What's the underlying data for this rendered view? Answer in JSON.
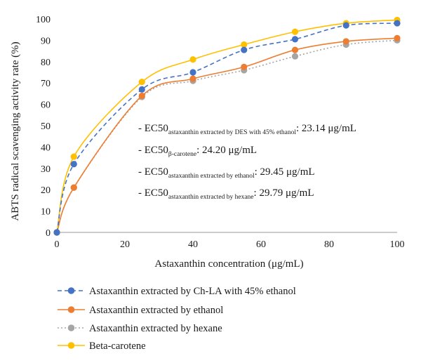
{
  "chart_data": {
    "type": "line",
    "xlabel": "Astaxanthin concentration (μg/mL)",
    "ylabel": "ABTS radical scavenging activity rate (%)",
    "xlim": [
      0,
      100
    ],
    "ylim": [
      0,
      100
    ],
    "xticks": [
      0,
      20,
      40,
      60,
      80,
      100
    ],
    "yticks": [
      0,
      10,
      20,
      30,
      40,
      50,
      60,
      70,
      80,
      90,
      100
    ],
    "grid": false,
    "legend_position": "bottom",
    "series": [
      {
        "name": "Astaxanthin extracted by Ch-LA with 45% ethanol",
        "color": "#4472c4",
        "line_style": "dashed",
        "x": [
          0,
          5,
          25,
          40,
          55,
          70,
          85,
          100
        ],
        "y": [
          0,
          32,
          67,
          75,
          85.5,
          90.5,
          97,
          98
        ]
      },
      {
        "name": "Astaxanthin extracted by ethanol",
        "color": "#ed7d31",
        "line_style": "solid",
        "x": [
          0,
          5,
          25,
          40,
          55,
          70,
          85,
          100
        ],
        "y": [
          0,
          21,
          64,
          72,
          77.5,
          85.5,
          89.5,
          91
        ]
      },
      {
        "name": "Astaxanthin extracted by hexane",
        "color": "#a5a5a5",
        "line_style": "dotted",
        "x": [
          0,
          5,
          25,
          40,
          55,
          70,
          85,
          100
        ],
        "y": [
          0,
          21,
          63.5,
          71,
          76,
          82.5,
          88,
          90
        ]
      },
      {
        "name": "Beta-carotene",
        "color": "#ffc000",
        "line_style": "solid",
        "x": [
          0,
          5,
          25,
          40,
          55,
          70,
          85,
          100
        ],
        "y": [
          0,
          35.5,
          70.5,
          81,
          88,
          94,
          98,
          99.5
        ]
      }
    ],
    "annotations": [
      {
        "prefix": "- EC50",
        "sub": "astaxanthin extracted by DES with 45% ethanol",
        "value": ": 23.14 μg/mL"
      },
      {
        "prefix": "- EC50",
        "sub": "β-carotene",
        "value": ": 24.20 μg/mL"
      },
      {
        "prefix": "- EC50",
        "sub": "astaxanthin extracted by ethanol",
        "value": ": 29.45 μg/mL"
      },
      {
        "prefix": "- EC50",
        "sub": "astaxanthin extracted by hexane",
        "value": ": 29.79 μg/mL"
      }
    ]
  }
}
